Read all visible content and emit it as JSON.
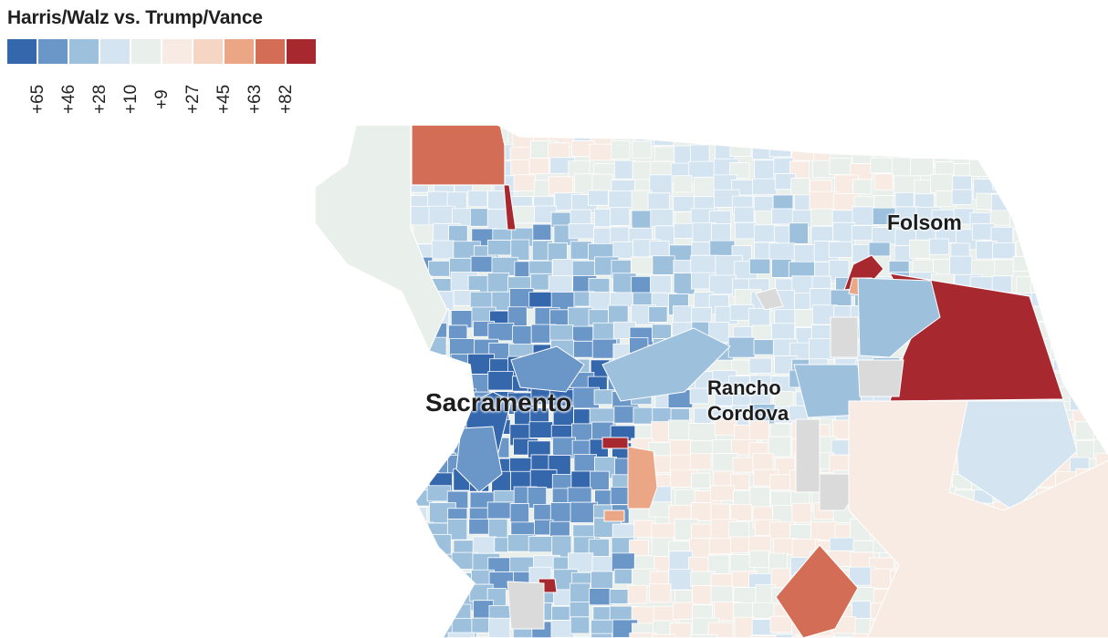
{
  "title": "Harris/Walz vs. Trump/Vance",
  "legend": {
    "colors": [
      "#3567ad",
      "#6b96c8",
      "#9dc0dd",
      "#d4e4f1",
      "#e9efea",
      "#f8ebe3",
      "#f5d6c4",
      "#eba685",
      "#d36d55",
      "#a7292f"
    ],
    "labels": [
      "+65",
      "+46",
      "+28",
      "+10",
      "+9",
      "+27",
      "+45",
      "+63",
      "+82"
    ]
  },
  "palette": {
    "no_data": "#dadada",
    "boundary": "#ffffff"
  },
  "places": [
    {
      "name": "Sacramento"
    },
    {
      "name": "Rancho\nCordova"
    },
    {
      "name": "Folsom"
    }
  ]
}
